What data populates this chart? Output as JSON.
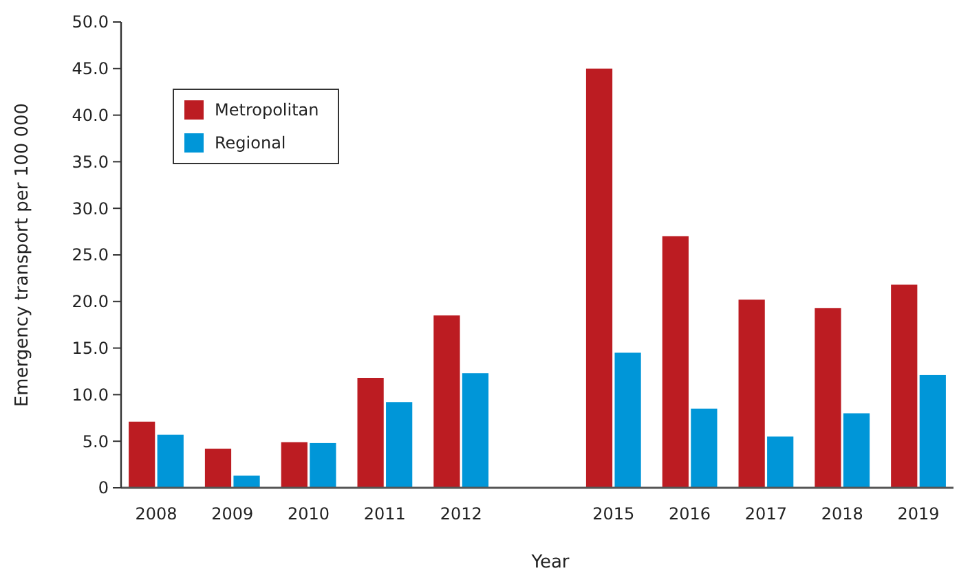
{
  "chart_data": {
    "type": "bar",
    "xlabel": "Year",
    "ylabel": "Emergency transport per 100 000",
    "categories": [
      "2008",
      "2009",
      "2010",
      "2011",
      "2012",
      null,
      "2015",
      "2016",
      "2017",
      "2018",
      "2019"
    ],
    "series": [
      {
        "name": "Metropolitan",
        "color": "#bc1c22",
        "values": [
          7.1,
          4.2,
          4.9,
          11.8,
          18.5,
          null,
          45.0,
          27.0,
          20.2,
          19.3,
          21.8
        ]
      },
      {
        "name": "Regional",
        "color": "#0096d8",
        "values": [
          5.7,
          1.3,
          4.8,
          9.2,
          12.3,
          null,
          14.5,
          8.5,
          5.5,
          8.0,
          12.1
        ]
      }
    ],
    "ylim": [
      0,
      50
    ],
    "yticks": [
      {
        "value": 0,
        "label": "0"
      },
      {
        "value": 5,
        "label": "5.0"
      },
      {
        "value": 10,
        "label": "10.0"
      },
      {
        "value": 15,
        "label": "15.0"
      },
      {
        "value": 20,
        "label": "20.0"
      },
      {
        "value": 25,
        "label": "25.0"
      },
      {
        "value": 30,
        "label": "30.0"
      },
      {
        "value": 35,
        "label": "35.0"
      },
      {
        "value": 40,
        "label": "40.0"
      },
      {
        "value": 45,
        "label": "45.0"
      },
      {
        "value": 50,
        "label": "50.0"
      }
    ],
    "grid": false,
    "legend": "top left"
  }
}
